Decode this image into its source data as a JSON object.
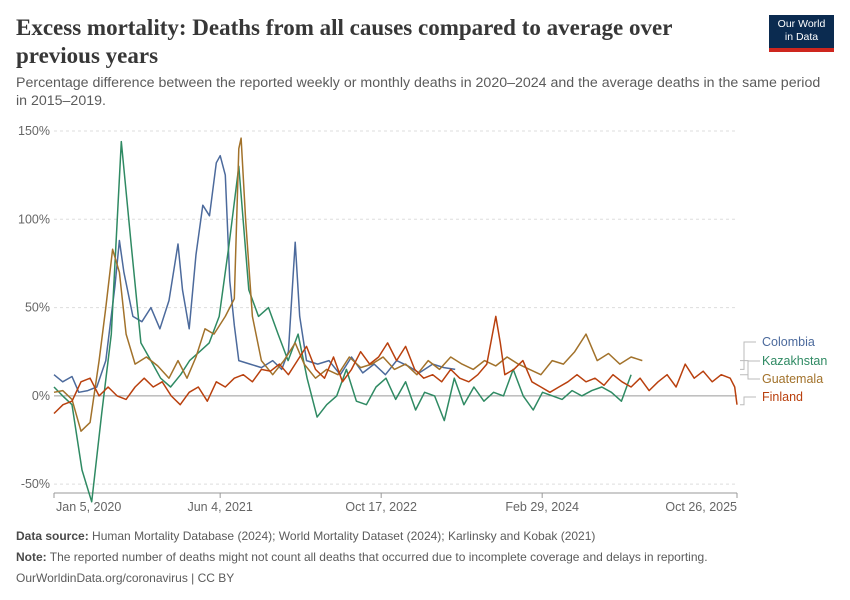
{
  "header": {
    "title": "Excess mortality: Deaths from all causes compared to average over previous years",
    "subtitle": "Percentage difference between the reported weekly or monthly deaths in 2020–2024 and the average deaths in the same period in 2015–2019."
  },
  "logo": {
    "line1": "Our World",
    "line2": "in Data"
  },
  "footer": {
    "source_label": "Data source:",
    "source_text": "Human Mortality Database (2024); World Mortality Dataset (2024); Karlinsky and Kobak (2021)",
    "note_label": "Note:",
    "note_text": "The reported number of deaths might not count all deaths that occurred due to incomplete coverage and delays in reporting.",
    "credit": "OurWorldinData.org/coronavirus | CC BY"
  },
  "colors": {
    "grid": "#dddddd",
    "axis": "#666666",
    "zero": "#9a9a9a"
  },
  "chart_data": {
    "type": "line",
    "x_axis": {
      "type": "date",
      "min": "2020-01-05",
      "max": "2025-10-26",
      "ticks": [
        "2020-01-05",
        "2021-06-04",
        "2022-10-17",
        "2024-02-29",
        "2025-10-26"
      ],
      "tick_labels": [
        "Jan 5, 2020",
        "Jun 4, 2021",
        "Oct 17, 2022",
        "Feb 29, 2024",
        "Oct 26, 2025"
      ]
    },
    "y_axis": {
      "unit": "%",
      "ylim": [
        -55,
        150
      ],
      "ticks": [
        -50,
        0,
        50,
        100,
        150
      ],
      "tick_labels": [
        "-50%",
        "0%",
        "50%",
        "100%",
        "150%"
      ]
    },
    "grid": "horizontal dashed",
    "legend": "right, labels at line ends",
    "series": [
      {
        "name": "Colombia",
        "color": "#4c6a9c",
        "points": [
          [
            "2020-01-05",
            12
          ],
          [
            "2020-02-01",
            8
          ],
          [
            "2020-03-01",
            11
          ],
          [
            "2020-03-22",
            2
          ],
          [
            "2020-04-19",
            3
          ],
          [
            "2020-05-17",
            5
          ],
          [
            "2020-06-14",
            20
          ],
          [
            "2020-07-12",
            62
          ],
          [
            "2020-07-26",
            88
          ],
          [
            "2020-08-09",
            70
          ],
          [
            "2020-09-06",
            45
          ],
          [
            "2020-10-04",
            42
          ],
          [
            "2020-11-01",
            50
          ],
          [
            "2020-11-29",
            38
          ],
          [
            "2020-12-27",
            54
          ],
          [
            "2021-01-24",
            86
          ],
          [
            "2021-02-07",
            60
          ],
          [
            "2021-02-28",
            38
          ],
          [
            "2021-03-21",
            80
          ],
          [
            "2021-04-11",
            108
          ],
          [
            "2021-05-02",
            102
          ],
          [
            "2021-05-23",
            132
          ],
          [
            "2021-06-04",
            136
          ],
          [
            "2021-06-20",
            125
          ],
          [
            "2021-07-04",
            65
          ],
          [
            "2021-07-18",
            40
          ],
          [
            "2021-08-01",
            20
          ],
          [
            "2021-09-05",
            18
          ],
          [
            "2021-10-10",
            16
          ],
          [
            "2021-11-14",
            20
          ],
          [
            "2021-12-12",
            15
          ],
          [
            "2022-01-02",
            25
          ],
          [
            "2022-01-23",
            87
          ],
          [
            "2022-02-06",
            45
          ],
          [
            "2022-02-27",
            20
          ],
          [
            "2022-04-03",
            18
          ],
          [
            "2022-05-08",
            20
          ],
          [
            "2022-06-12",
            12
          ],
          [
            "2022-07-17",
            22
          ],
          [
            "2022-08-21",
            13
          ],
          [
            "2022-09-25",
            18
          ],
          [
            "2022-10-30",
            12
          ],
          [
            "2022-12-04",
            20
          ],
          [
            "2023-01-08",
            17
          ],
          [
            "2023-02-12",
            13
          ],
          [
            "2023-03-26",
            18
          ],
          [
            "2023-04-30",
            16
          ],
          [
            "2023-06-04",
            15
          ]
        ]
      },
      {
        "name": "Kazakhstan",
        "color": "#2f8a63",
        "points": [
          [
            "2020-01-05",
            5
          ],
          [
            "2020-02-01",
            0
          ],
          [
            "2020-03-01",
            -5
          ],
          [
            "2020-04-01",
            -42
          ],
          [
            "2020-05-01",
            -60
          ],
          [
            "2020-06-01",
            -10
          ],
          [
            "2020-07-01",
            35
          ],
          [
            "2020-08-01",
            144
          ],
          [
            "2020-09-01",
            85
          ],
          [
            "2020-10-01",
            30
          ],
          [
            "2020-11-01",
            20
          ],
          [
            "2020-12-01",
            10
          ],
          [
            "2021-01-01",
            5
          ],
          [
            "2021-02-01",
            12
          ],
          [
            "2021-03-01",
            20
          ],
          [
            "2021-04-01",
            25
          ],
          [
            "2021-05-01",
            30
          ],
          [
            "2021-06-01",
            45
          ],
          [
            "2021-07-01",
            85
          ],
          [
            "2021-08-01",
            130
          ],
          [
            "2021-09-01",
            60
          ],
          [
            "2021-10-01",
            45
          ],
          [
            "2021-11-01",
            50
          ],
          [
            "2021-12-01",
            35
          ],
          [
            "2022-01-01",
            20
          ],
          [
            "2022-02-01",
            35
          ],
          [
            "2022-03-01",
            10
          ],
          [
            "2022-04-01",
            -12
          ],
          [
            "2022-05-01",
            -5
          ],
          [
            "2022-06-01",
            0
          ],
          [
            "2022-07-01",
            15
          ],
          [
            "2022-08-01",
            -3
          ],
          [
            "2022-09-01",
            -5
          ],
          [
            "2022-10-01",
            5
          ],
          [
            "2022-11-01",
            10
          ],
          [
            "2022-12-01",
            -2
          ],
          [
            "2023-01-01",
            8
          ],
          [
            "2023-02-01",
            -8
          ],
          [
            "2023-03-01",
            2
          ],
          [
            "2023-04-01",
            0
          ],
          [
            "2023-05-01",
            -14
          ],
          [
            "2023-06-01",
            10
          ],
          [
            "2023-07-01",
            -5
          ],
          [
            "2023-08-01",
            5
          ],
          [
            "2023-09-01",
            -3
          ],
          [
            "2023-10-01",
            2
          ],
          [
            "2023-11-01",
            0
          ],
          [
            "2023-12-01",
            15
          ],
          [
            "2024-01-01",
            0
          ],
          [
            "2024-02-01",
            -8
          ],
          [
            "2024-03-01",
            2
          ],
          [
            "2024-04-01",
            0
          ],
          [
            "2024-05-01",
            -2
          ],
          [
            "2024-06-01",
            3
          ],
          [
            "2024-07-01",
            0
          ],
          [
            "2024-08-01",
            3
          ],
          [
            "2024-09-01",
            5
          ],
          [
            "2024-10-01",
            2
          ],
          [
            "2024-11-01",
            -3
          ],
          [
            "2024-12-01",
            12
          ]
        ]
      },
      {
        "name": "Guatemala",
        "color": "#a2722b",
        "points": [
          [
            "2020-01-05",
            2
          ],
          [
            "2020-02-01",
            3
          ],
          [
            "2020-03-01",
            -2
          ],
          [
            "2020-03-29",
            -20
          ],
          [
            "2020-04-26",
            -15
          ],
          [
            "2020-05-24",
            20
          ],
          [
            "2020-06-14",
            50
          ],
          [
            "2020-07-05",
            83
          ],
          [
            "2020-07-26",
            70
          ],
          [
            "2020-08-16",
            35
          ],
          [
            "2020-09-13",
            18
          ],
          [
            "2020-10-18",
            22
          ],
          [
            "2020-11-22",
            17
          ],
          [
            "2020-12-27",
            10
          ],
          [
            "2021-01-24",
            20
          ],
          [
            "2021-02-21",
            10
          ],
          [
            "2021-03-21",
            22
          ],
          [
            "2021-04-18",
            38
          ],
          [
            "2021-05-16",
            35
          ],
          [
            "2021-06-20",
            45
          ],
          [
            "2021-07-18",
            55
          ],
          [
            "2021-08-01",
            140
          ],
          [
            "2021-08-08",
            146
          ],
          [
            "2021-08-22",
            100
          ],
          [
            "2021-09-12",
            45
          ],
          [
            "2021-10-10",
            20
          ],
          [
            "2021-11-14",
            12
          ],
          [
            "2021-12-19",
            20
          ],
          [
            "2022-01-23",
            30
          ],
          [
            "2022-02-20",
            18
          ],
          [
            "2022-03-27",
            10
          ],
          [
            "2022-05-01",
            15
          ],
          [
            "2022-06-05",
            12
          ],
          [
            "2022-07-10",
            22
          ],
          [
            "2022-08-14",
            16
          ],
          [
            "2022-09-18",
            18
          ],
          [
            "2022-10-23",
            22
          ],
          [
            "2022-11-27",
            15
          ],
          [
            "2023-01-01",
            18
          ],
          [
            "2023-02-05",
            12
          ],
          [
            "2023-03-12",
            20
          ],
          [
            "2023-04-16",
            15
          ],
          [
            "2023-05-21",
            22
          ],
          [
            "2023-06-25",
            18
          ],
          [
            "2023-07-30",
            15
          ],
          [
            "2023-09-03",
            20
          ],
          [
            "2023-10-08",
            17
          ],
          [
            "2023-11-12",
            22
          ],
          [
            "2023-12-17",
            18
          ],
          [
            "2024-01-21",
            15
          ],
          [
            "2024-02-25",
            12
          ],
          [
            "2024-03-31",
            20
          ],
          [
            "2024-05-05",
            18
          ],
          [
            "2024-06-09",
            25
          ],
          [
            "2024-07-14",
            35
          ],
          [
            "2024-08-18",
            20
          ],
          [
            "2024-09-22",
            24
          ],
          [
            "2024-10-27",
            18
          ],
          [
            "2024-12-01",
            22
          ],
          [
            "2025-01-05",
            20
          ]
        ]
      },
      {
        "name": "Finland",
        "color": "#b9400e",
        "points": [
          [
            "2020-01-05",
            -10
          ],
          [
            "2020-02-02",
            -5
          ],
          [
            "2020-03-01",
            -3
          ],
          [
            "2020-03-29",
            8
          ],
          [
            "2020-04-26",
            10
          ],
          [
            "2020-05-24",
            0
          ],
          [
            "2020-06-21",
            5
          ],
          [
            "2020-07-19",
            0
          ],
          [
            "2020-08-16",
            -2
          ],
          [
            "2020-09-13",
            5
          ],
          [
            "2020-10-11",
            10
          ],
          [
            "2020-11-08",
            5
          ],
          [
            "2020-12-06",
            8
          ],
          [
            "2021-01-03",
            0
          ],
          [
            "2021-01-31",
            -5
          ],
          [
            "2021-02-28",
            2
          ],
          [
            "2021-03-28",
            5
          ],
          [
            "2021-04-25",
            -3
          ],
          [
            "2021-05-23",
            8
          ],
          [
            "2021-06-20",
            5
          ],
          [
            "2021-07-18",
            10
          ],
          [
            "2021-08-15",
            12
          ],
          [
            "2021-09-12",
            8
          ],
          [
            "2021-10-10",
            15
          ],
          [
            "2021-11-07",
            14
          ],
          [
            "2021-12-05",
            18
          ],
          [
            "2022-01-02",
            12
          ],
          [
            "2022-01-30",
            20
          ],
          [
            "2022-02-27",
            28
          ],
          [
            "2022-03-27",
            15
          ],
          [
            "2022-04-24",
            10
          ],
          [
            "2022-05-22",
            22
          ],
          [
            "2022-06-19",
            8
          ],
          [
            "2022-07-17",
            15
          ],
          [
            "2022-08-14",
            25
          ],
          [
            "2022-09-11",
            18
          ],
          [
            "2022-10-09",
            22
          ],
          [
            "2022-11-06",
            30
          ],
          [
            "2022-12-04",
            20
          ],
          [
            "2023-01-01",
            28
          ],
          [
            "2023-01-29",
            15
          ],
          [
            "2023-02-26",
            10
          ],
          [
            "2023-03-26",
            12
          ],
          [
            "2023-04-23",
            8
          ],
          [
            "2023-05-21",
            15
          ],
          [
            "2023-06-18",
            10
          ],
          [
            "2023-07-16",
            8
          ],
          [
            "2023-08-13",
            12
          ],
          [
            "2023-09-10",
            18
          ],
          [
            "2023-10-08",
            45
          ],
          [
            "2023-10-22",
            30
          ],
          [
            "2023-11-05",
            12
          ],
          [
            "2023-12-03",
            15
          ],
          [
            "2023-12-31",
            20
          ],
          [
            "2024-01-28",
            8
          ],
          [
            "2024-02-25",
            5
          ],
          [
            "2024-03-24",
            2
          ],
          [
            "2024-04-21",
            5
          ],
          [
            "2024-05-19",
            8
          ],
          [
            "2024-06-16",
            12
          ],
          [
            "2024-07-14",
            8
          ],
          [
            "2024-08-11",
            10
          ],
          [
            "2024-09-08",
            6
          ],
          [
            "2024-10-06",
            12
          ],
          [
            "2024-11-03",
            8
          ],
          [
            "2024-12-01",
            5
          ],
          [
            "2024-12-29",
            10
          ],
          [
            "2025-01-26",
            3
          ],
          [
            "2025-02-23",
            8
          ],
          [
            "2025-03-23",
            12
          ],
          [
            "2025-04-20",
            5
          ],
          [
            "2025-05-18",
            18
          ],
          [
            "2025-06-15",
            10
          ],
          [
            "2025-07-13",
            14
          ],
          [
            "2025-08-10",
            8
          ],
          [
            "2025-09-07",
            12
          ],
          [
            "2025-10-05",
            10
          ],
          [
            "2025-10-19",
            5
          ],
          [
            "2025-10-26",
            -5
          ]
        ]
      }
    ]
  }
}
